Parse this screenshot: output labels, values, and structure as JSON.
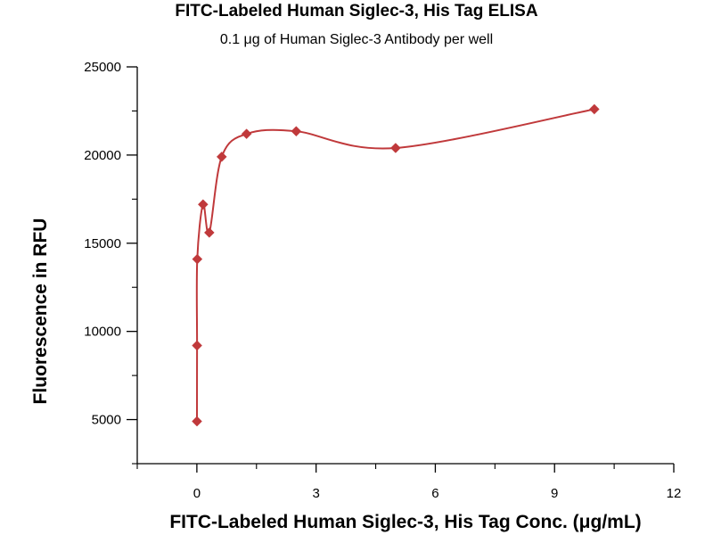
{
  "chart_data": {
    "type": "scatter",
    "title": "FITC-Labeled Human Siglec-3, His Tag ELISA",
    "subtitle": "0.1 μg of Human Siglec-3 Antibody per well",
    "xlabel": "FITC-Labeled Human Siglec-3, His Tag Conc. (μg/mL)",
    "ylabel": "Fluorescence in RFU",
    "xlim": [
      -1.5,
      12
    ],
    "ylim": [
      2500,
      25000
    ],
    "x_ticks": [
      0,
      3,
      6,
      9,
      12
    ],
    "x_tick_labels": [
      "0",
      "3",
      "6",
      "9",
      "12"
    ],
    "y_ticks": [
      5000,
      10000,
      15000,
      20000,
      25000
    ],
    "y_tick_labels": [
      "5000",
      "10000",
      "15000",
      "20000",
      "25000"
    ],
    "grid": false,
    "legend": "none",
    "series": [
      {
        "marker": "diamond",
        "color": "#c0393b",
        "x": [
          0.0024,
          0.0049,
          0.0098,
          0.156,
          0.3125,
          0.625,
          1.25,
          2.5,
          5,
          10
        ],
        "y": [
          4900,
          9200,
          14100,
          17200,
          15600,
          19900,
          21200,
          21350,
          20400,
          22600
        ],
        "fit_curve": true
      }
    ]
  }
}
